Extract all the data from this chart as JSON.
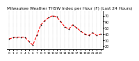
{
  "title": "Milwaukee Weather THSW Index per Hour (F) (Last 24 Hours)",
  "x_values": [
    0,
    1,
    2,
    3,
    4,
    5,
    6,
    7,
    8,
    9,
    10,
    11,
    12,
    13,
    14,
    15,
    16,
    17,
    18,
    19,
    20,
    21,
    22,
    23
  ],
  "y_values": [
    32,
    34,
    35,
    35,
    35,
    28,
    22,
    38,
    55,
    62,
    67,
    70,
    68,
    60,
    52,
    48,
    55,
    50,
    45,
    40,
    38,
    42,
    38,
    40
  ],
  "ylim": [
    15,
    78
  ],
  "yticks": [
    20,
    30,
    40,
    50,
    60,
    70
  ],
  "line_color": "#ff0000",
  "marker_color": "#000000",
  "bg_color": "#ffffff",
  "plot_bg": "#ffffff",
  "grid_color": "#888888",
  "title_fontsize": 4.2,
  "tick_fontsize": 3.5,
  "line_width": 0.8,
  "marker_size": 1.8
}
